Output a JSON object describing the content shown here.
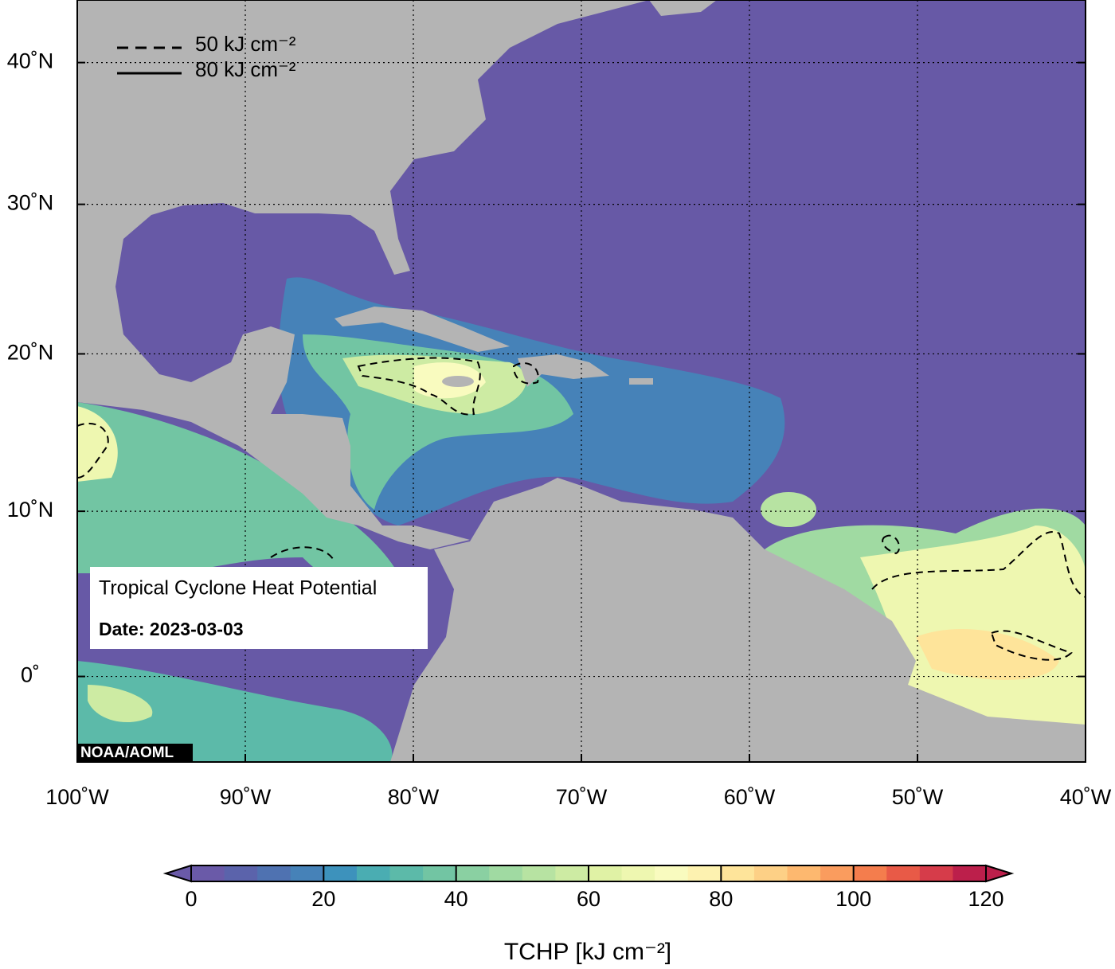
{
  "map": {
    "title": "Tropical Cyclone Heat Potential",
    "date": "Date: 2023-03-03",
    "credit": "NOAA/AOML",
    "xlim": [
      -100,
      -40
    ],
    "ylim": [
      -5,
      44.6
    ],
    "lon_ticks": [
      {
        "value": -100,
        "label": "100˚W"
      },
      {
        "value": -90,
        "label": "90˚W"
      },
      {
        "value": -80,
        "label": "80˚W"
      },
      {
        "value": -70,
        "label": "70˚W"
      },
      {
        "value": -60,
        "label": "60˚W"
      },
      {
        "value": -50,
        "label": "50˚W"
      },
      {
        "value": -40,
        "label": "40˚W"
      }
    ],
    "lat_ticks": [
      {
        "value": 0,
        "label": "0˚"
      },
      {
        "value": 10,
        "label": "10˚N"
      },
      {
        "value": 20,
        "label": "20˚N"
      },
      {
        "value": 30,
        "label": "30˚N"
      },
      {
        "value": 40,
        "label": "40˚N"
      }
    ],
    "contour_legend": [
      "50 kJ cm⁻²",
      "80 kJ cm⁻²"
    ],
    "colorbar": {
      "label": "TCHP [kJ cm⁻²]",
      "lim": [
        0,
        120
      ],
      "ticks": [
        0,
        20,
        40,
        60,
        80,
        100,
        120
      ],
      "colors": [
        "#6a5aa8",
        "#5b63ab",
        "#4f72b1",
        "#4682b8",
        "#3d92bc",
        "#4aadb2",
        "#5cbaa9",
        "#72c5a3",
        "#8ad0a2",
        "#a0daa2",
        "#b7e3a2",
        "#cdeba3",
        "#e0f2a5",
        "#eef7b0",
        "#f9fbbf",
        "#fdf2b0",
        "#fee49a",
        "#fdd086",
        "#fdb86f",
        "#fa9c5e",
        "#f47d4d",
        "#e85a47",
        "#d63c4a",
        "#bc1f4b"
      ]
    }
  }
}
